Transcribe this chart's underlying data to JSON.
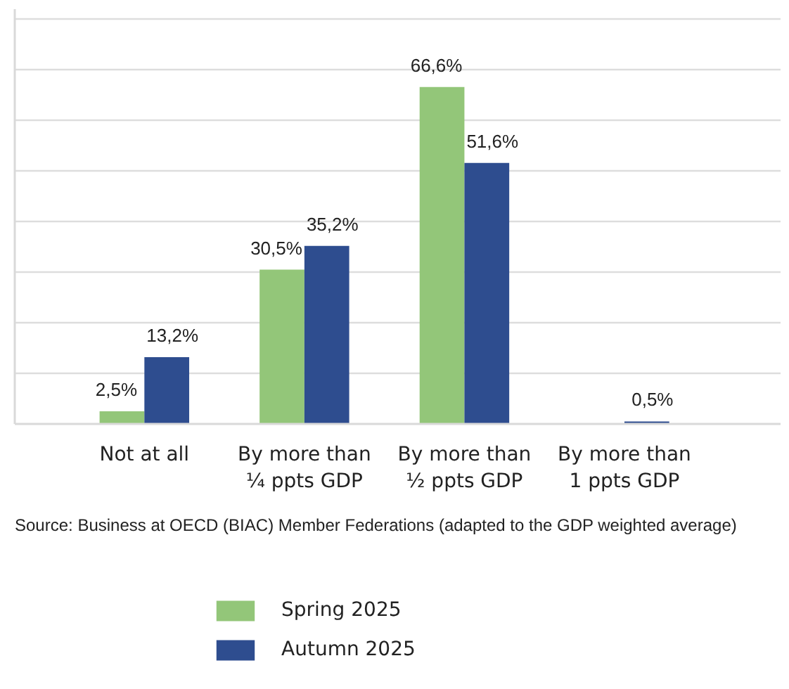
{
  "chart_data": {
    "type": "bar",
    "categories": [
      "Not at all",
      "By more than\n¼ ppts GDP",
      "By more than\n½ ppts GDP",
      "By more than\n1 ppts GDP"
    ],
    "series": [
      {
        "name": "Spring 2025",
        "color": "#93c679",
        "values": [
          2.5,
          30.5,
          66.6,
          null
        ],
        "value_labels": [
          "2,5%",
          "30,5%",
          "66,6%",
          null
        ]
      },
      {
        "name": "Autumn 2025",
        "color": "#2e4d8f",
        "values": [
          13.2,
          35.2,
          51.6,
          0.5
        ],
        "value_labels": [
          "13,2%",
          "35,2%",
          "51,6%",
          "0,5%"
        ]
      }
    ],
    "ylim": [
      0,
      82
    ],
    "yticks": [
      {
        "value": 0,
        "label": null
      },
      {
        "value": 10,
        "label": null
      },
      {
        "value": 20,
        "label": null
      },
      {
        "value": 30,
        "label": null
      },
      {
        "value": 40,
        "label": null
      },
      {
        "value": 50,
        "label": null
      },
      {
        "value": 60,
        "label": null
      },
      {
        "value": 70,
        "label": null
      },
      {
        "value": 80,
        "label": null
      }
    ],
    "grid": "y",
    "tick_labels": "x",
    "legend": "bottom",
    "annotations": [
      "Source: Business at OECD (BIAC) Member Federations (adapted to the GDP weighted average)"
    ]
  }
}
